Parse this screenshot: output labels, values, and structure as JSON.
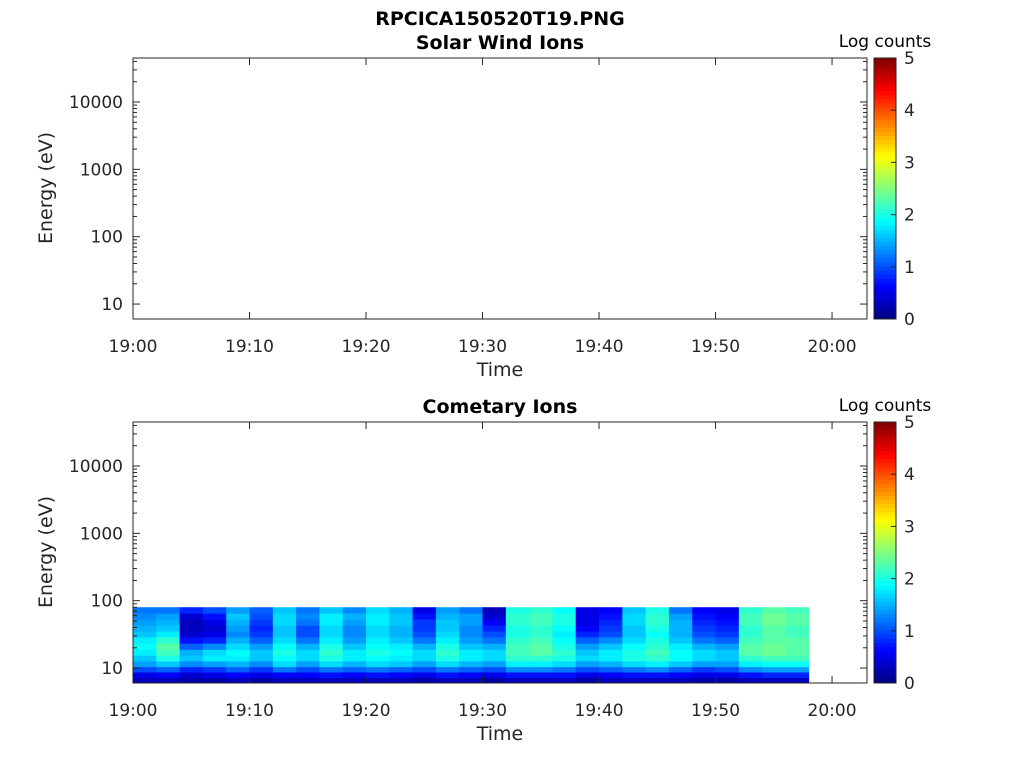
{
  "figure": {
    "title": "RPCICA150520T19.PNG"
  },
  "chart_data": [
    {
      "type": "heatmap",
      "title": "Solar Wind Ions",
      "xlabel": "Time",
      "ylabel": "Energy (eV)",
      "x_ticks": [
        "19:00",
        "19:10",
        "19:20",
        "19:30",
        "19:40",
        "19:50",
        "20:00"
      ],
      "xlim": [
        "19:00",
        "20:03"
      ],
      "y_scale": "log",
      "y_ticks": [
        "10",
        "100",
        "1000",
        "10000"
      ],
      "ylim": [
        6,
        45000
      ],
      "colorbar": {
        "label": "Log counts",
        "ticks": [
          "0",
          "1",
          "2",
          "3",
          "4",
          "5"
        ],
        "range": [
          0,
          5
        ],
        "colormap": "jet"
      },
      "data_present": false,
      "columns": []
    },
    {
      "type": "heatmap",
      "title": "Cometary Ions",
      "xlabel": "Time",
      "ylabel": "Energy (eV)",
      "x_ticks": [
        "19:00",
        "19:10",
        "19:20",
        "19:30",
        "19:40",
        "19:50",
        "20:00"
      ],
      "xlim": [
        "19:00",
        "20:03"
      ],
      "y_scale": "log",
      "y_ticks": [
        "10",
        "100",
        "1000",
        "10000"
      ],
      "ylim": [
        6,
        45000
      ],
      "colorbar": {
        "label": "Log counts",
        "ticks": [
          "0",
          "1",
          "2",
          "3",
          "4",
          "5"
        ],
        "range": [
          0,
          5
        ],
        "colormap": "jet"
      },
      "data_present": true,
      "energy_bins_eV": [
        6.5,
        8.0,
        9.5,
        11.5,
        14.0,
        17.0,
        21.0,
        26.0,
        32.0,
        39.0,
        48.0,
        59.0,
        72.0
      ],
      "energy_max_eV": 80,
      "columns": [
        {
          "t": "19:00",
          "logc": [
            0.3,
            0.5,
            1.0,
            1.4,
            1.6,
            1.8,
            1.9,
            1.8,
            1.6,
            1.5,
            1.4,
            1.3,
            1.2
          ]
        },
        {
          "t": "19:02",
          "logc": [
            0.3,
            0.6,
            1.1,
            1.6,
            2.0,
            2.2,
            2.3,
            2.1,
            1.8,
            1.6,
            1.5,
            1.4,
            1.2
          ]
        },
        {
          "t": "19:04",
          "logc": [
            0.2,
            0.4,
            0.8,
            1.3,
            1.6,
            1.5,
            1.1,
            0.7,
            0.4,
            0.3,
            0.3,
            0.4,
            0.8
          ]
        },
        {
          "t": "19:06",
          "logc": [
            0.2,
            0.5,
            0.9,
            1.4,
            1.8,
            1.7,
            1.3,
            0.8,
            0.5,
            0.4,
            0.5,
            0.7,
            1.0
          ]
        },
        {
          "t": "19:08",
          "logc": [
            0.3,
            0.6,
            1.1,
            1.5,
            1.8,
            1.9,
            1.7,
            1.5,
            1.3,
            1.4,
            1.5,
            1.6,
            1.4
          ]
        },
        {
          "t": "19:10",
          "logc": [
            0.2,
            0.5,
            0.9,
            1.3,
            1.6,
            1.6,
            1.4,
            1.1,
            0.9,
            0.8,
            0.9,
            1.0,
            1.1
          ]
        },
        {
          "t": "19:12",
          "logc": [
            0.3,
            0.6,
            1.2,
            1.7,
            1.9,
            2.0,
            1.9,
            1.7,
            1.6,
            1.6,
            1.7,
            1.7,
            1.6
          ]
        },
        {
          "t": "19:14",
          "logc": [
            0.3,
            0.6,
            1.0,
            1.4,
            1.7,
            1.7,
            1.5,
            1.2,
            1.0,
            1.0,
            1.2,
            1.3,
            1.2
          ]
        },
        {
          "t": "19:16",
          "logc": [
            0.3,
            0.7,
            1.2,
            1.7,
            2.0,
            2.1,
            2.0,
            1.8,
            1.7,
            1.7,
            1.8,
            1.8,
            1.6
          ]
        },
        {
          "t": "19:18",
          "logc": [
            0.3,
            0.6,
            1.1,
            1.5,
            1.8,
            1.8,
            1.6,
            1.4,
            1.3,
            1.3,
            1.4,
            1.5,
            1.3
          ]
        },
        {
          "t": "19:20",
          "logc": [
            0.3,
            0.7,
            1.2,
            1.7,
            1.9,
            2.0,
            1.9,
            1.8,
            1.7,
            1.7,
            1.8,
            1.8,
            1.7
          ]
        },
        {
          "t": "19:22",
          "logc": [
            0.3,
            0.6,
            1.1,
            1.6,
            1.8,
            1.9,
            1.8,
            1.6,
            1.5,
            1.5,
            1.6,
            1.6,
            1.5
          ]
        },
        {
          "t": "19:24",
          "logc": [
            0.2,
            0.5,
            1.0,
            1.4,
            1.7,
            1.7,
            1.5,
            1.2,
            1.0,
            0.9,
            0.9,
            0.7,
            0.5
          ]
        },
        {
          "t": "19:26",
          "logc": [
            0.3,
            0.7,
            1.2,
            1.7,
            2.0,
            2.1,
            2.0,
            1.8,
            1.7,
            1.6,
            1.6,
            1.5,
            1.4
          ]
        },
        {
          "t": "19:28",
          "logc": [
            0.3,
            0.6,
            1.1,
            1.5,
            1.8,
            1.8,
            1.6,
            1.4,
            1.3,
            1.3,
            1.4,
            1.4,
            1.2
          ]
        },
        {
          "t": "19:30",
          "logc": [
            0.2,
            0.5,
            1.0,
            1.4,
            1.7,
            1.7,
            1.5,
            1.2,
            1.0,
            0.8,
            0.6,
            0.4,
            0.3
          ]
        },
        {
          "t": "19:32",
          "logc": [
            0.3,
            0.7,
            1.3,
            1.8,
            2.1,
            2.2,
            2.2,
            2.1,
            2.0,
            2.0,
            2.1,
            2.1,
            2.0
          ]
        },
        {
          "t": "19:34",
          "logc": [
            0.3,
            0.7,
            1.3,
            1.8,
            2.1,
            2.3,
            2.3,
            2.2,
            2.1,
            2.1,
            2.2,
            2.2,
            2.1
          ]
        },
        {
          "t": "19:36",
          "logc": [
            0.3,
            0.7,
            1.2,
            1.7,
            2.0,
            2.1,
            2.0,
            1.9,
            1.8,
            1.9,
            2.0,
            2.0,
            1.9
          ]
        },
        {
          "t": "19:38",
          "logc": [
            0.2,
            0.5,
            1.0,
            1.4,
            1.7,
            1.6,
            1.4,
            1.1,
            0.8,
            0.6,
            0.5,
            0.5,
            0.5
          ]
        },
        {
          "t": "19:40",
          "logc": [
            0.3,
            0.6,
            1.1,
            1.5,
            1.8,
            1.8,
            1.6,
            1.3,
            1.0,
            0.9,
            0.8,
            0.7,
            0.6
          ]
        },
        {
          "t": "19:42",
          "logc": [
            0.3,
            0.7,
            1.2,
            1.7,
            2.0,
            2.0,
            1.9,
            1.7,
            1.6,
            1.6,
            1.7,
            1.7,
            1.6
          ]
        },
        {
          "t": "19:44",
          "logc": [
            0.3,
            0.7,
            1.3,
            1.8,
            2.1,
            2.2,
            2.1,
            2.0,
            1.9,
            2.0,
            2.1,
            2.1,
            2.0
          ]
        },
        {
          "t": "19:46",
          "logc": [
            0.3,
            0.6,
            1.1,
            1.6,
            1.9,
            1.9,
            1.8,
            1.6,
            1.5,
            1.5,
            1.5,
            1.4,
            1.2
          ]
        },
        {
          "t": "19:48",
          "logc": [
            0.2,
            0.5,
            0.9,
            1.4,
            1.7,
            1.7,
            1.5,
            1.2,
            1.0,
            0.9,
            0.8,
            0.7,
            0.6
          ]
        },
        {
          "t": "19:50",
          "logc": [
            0.2,
            0.5,
            1.0,
            1.4,
            1.6,
            1.6,
            1.4,
            1.1,
            0.9,
            0.8,
            0.7,
            0.6,
            0.5
          ]
        },
        {
          "t": "19:52",
          "logc": [
            0.3,
            0.7,
            1.3,
            1.8,
            2.1,
            2.3,
            2.3,
            2.2,
            2.1,
            2.1,
            2.2,
            2.2,
            2.1
          ]
        },
        {
          "t": "19:54",
          "logc": [
            0.3,
            0.8,
            1.4,
            1.9,
            2.2,
            2.4,
            2.4,
            2.3,
            2.3,
            2.3,
            2.4,
            2.4,
            2.3
          ]
        },
        {
          "t": "19:56",
          "logc": [
            0.3,
            0.8,
            1.4,
            1.9,
            2.2,
            2.3,
            2.3,
            2.3,
            2.2,
            2.2,
            2.3,
            2.3,
            2.2
          ]
        }
      ],
      "data_end": "19:58"
    }
  ]
}
